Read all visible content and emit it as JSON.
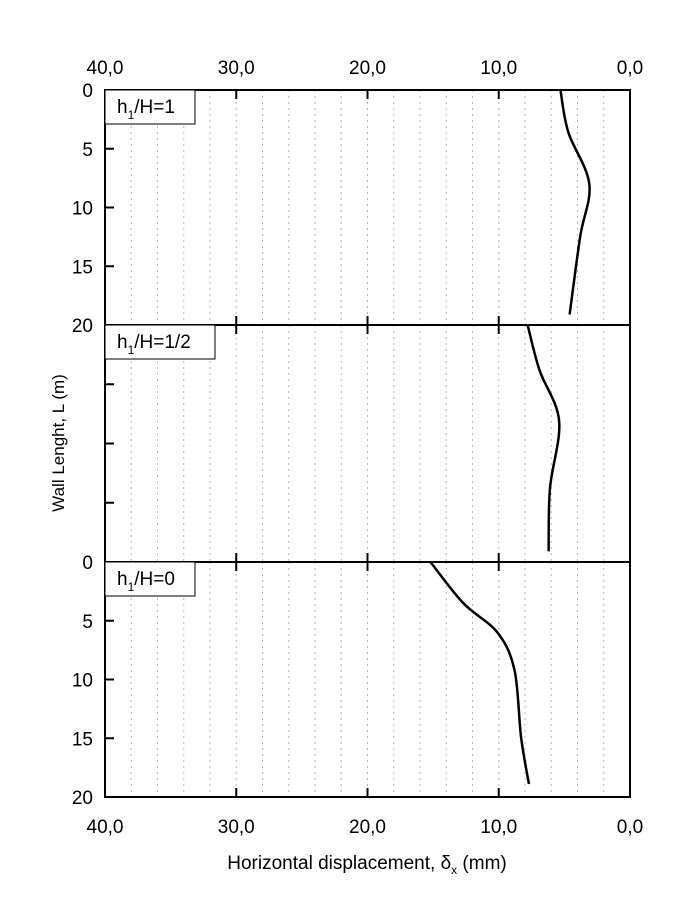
{
  "chart_data": {
    "type": "line",
    "xlabel": "Horizontal displacement, δ",
    "xlabel_sub": "x",
    "xlabel_unit": " (mm)",
    "ylabel": "Wall Lenght, L (m)",
    "xlim": [
      40,
      0
    ],
    "ylim": [
      0,
      20
    ],
    "x_ticks": [
      "40,0",
      "30,0",
      "20,0",
      "10,0",
      "0,0"
    ],
    "x_tick_values": [
      40,
      30,
      20,
      10,
      0
    ],
    "grid": "vertical dotted every 2 mm",
    "panels": [
      {
        "legend_main": "h",
        "legend_sub": "1",
        "legend_rest": "/H=1",
        "y_ticks": [
          "0",
          "5",
          "10",
          "15",
          "20"
        ],
        "series": {
          "x": [
            5.3,
            4.7,
            3.1,
            3.8,
            4.6
          ],
          "y": [
            0,
            3.6,
            8.0,
            12.5,
            19.1
          ]
        }
      },
      {
        "legend_main": "h",
        "legend_sub": "1",
        "legend_rest": "/H=1/2",
        "y_ticks": [],
        "series": {
          "x": [
            7.8,
            6.9,
            5.4,
            6.1,
            6.2
          ],
          "y": [
            0,
            3.8,
            8.1,
            13.8,
            19.1
          ]
        }
      },
      {
        "legend_main": "h",
        "legend_sub": "1",
        "legend_rest": "/H=0",
        "y_ticks": [
          "0",
          "5",
          "10",
          "15",
          "20"
        ],
        "series": {
          "x": [
            15.2,
            12.7,
            10.1,
            8.8,
            8.3,
            7.7
          ],
          "y": [
            0,
            3.5,
            6.0,
            9.2,
            14.9,
            18.9
          ]
        }
      }
    ]
  }
}
